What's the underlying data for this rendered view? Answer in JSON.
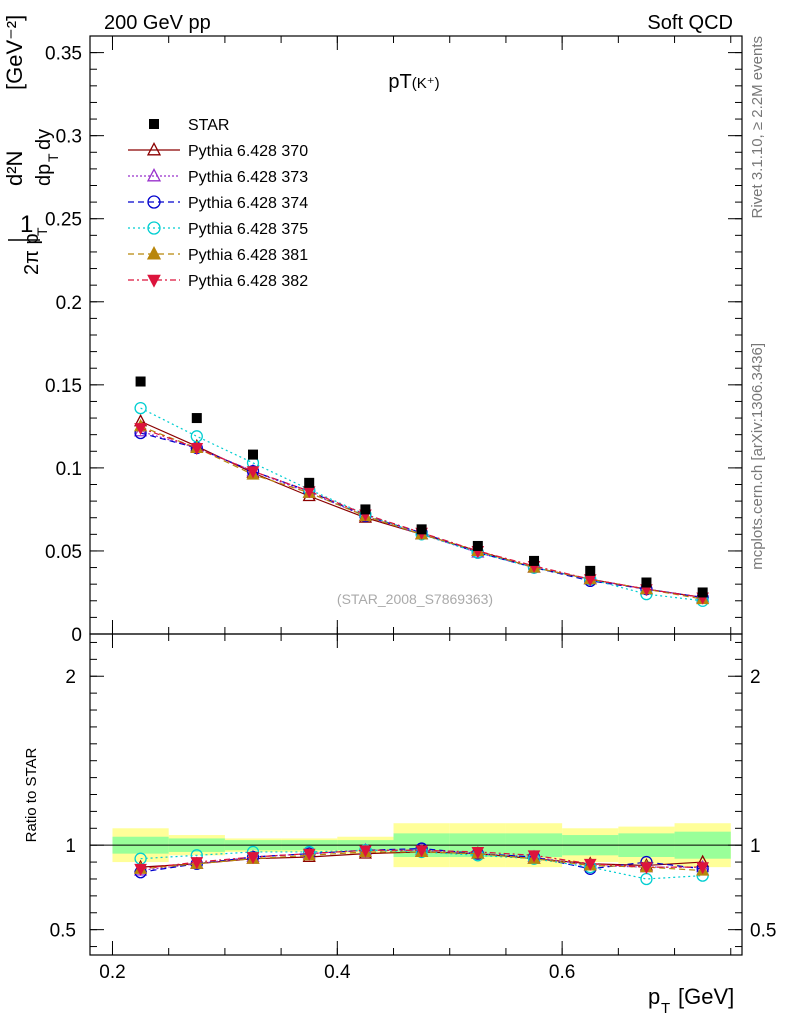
{
  "header": {
    "left": "200 GeV pp",
    "right": "Soft QCD"
  },
  "side": {
    "version": "Rivet 3.1.10, ≥ 2.2M events",
    "source": "mcplots.cern.ch [arXiv:1306.3436]"
  },
  "chart_data": {
    "type": "scatter",
    "title": "pT(K+)",
    "watermark": "(STAR_2008_S7869363)",
    "xlabel": "p_T [GeV]",
    "ylabel": "1/(2π p_T) d²N/(dp_T dy) [GeV⁻²]",
    "ratio_ylabel": "Ratio to STAR",
    "xlim": [
      0.18,
      0.76
    ],
    "ylim": [
      0,
      0.36
    ],
    "ratio_ylim": [
      0.35,
      2.25
    ],
    "x_ticks": [
      0.2,
      0.4,
      0.6
    ],
    "x_tick_labels": [
      "0.2",
      "0.4",
      "0.6"
    ],
    "y_ticks": [
      0,
      0.05,
      0.1,
      0.15,
      0.2,
      0.25,
      0.3,
      0.35
    ],
    "y_tick_labels": [
      "0",
      "0.05",
      "0.1",
      "0.15",
      "0.2",
      "0.25",
      "0.3",
      "0.35"
    ],
    "ratio_ticks": [
      0.5,
      1,
      2
    ],
    "ratio_tick_labels": [
      "0.5",
      "1",
      "2"
    ],
    "legend_position": "top-left",
    "x": [
      0.225,
      0.275,
      0.325,
      0.375,
      0.425,
      0.475,
      0.525,
      0.575,
      0.625,
      0.675,
      0.725
    ],
    "bin_edges": [
      0.2,
      0.25,
      0.3,
      0.35,
      0.4,
      0.45,
      0.5,
      0.55,
      0.6,
      0.65,
      0.7,
      0.75
    ],
    "data": {
      "name": "STAR",
      "values": [
        0.152,
        0.13,
        0.108,
        0.091,
        0.075,
        0.063,
        0.053,
        0.044,
        0.038,
        0.031,
        0.025
      ],
      "ratio_band_inner": [
        0.05,
        0.04,
        0.03,
        0.03,
        0.03,
        0.07,
        0.07,
        0.07,
        0.06,
        0.07,
        0.08
      ],
      "ratio_band_outer": [
        0.1,
        0.06,
        0.04,
        0.04,
        0.05,
        0.13,
        0.13,
        0.13,
        0.1,
        0.11,
        0.13
      ]
    },
    "series": [
      {
        "name": "Pythia 6.428 370",
        "color": "#8b0000",
        "marker": "triangle-open",
        "dash": "",
        "values": [
          0.128,
          0.113,
          0.097,
          0.083,
          0.07,
          0.06,
          0.05,
          0.04,
          0.033,
          0.027,
          0.022
        ],
        "ratio": [
          0.87,
          0.89,
          0.92,
          0.93,
          0.95,
          0.96,
          0.95,
          0.92,
          0.89,
          0.88,
          0.9
        ]
      },
      {
        "name": "Pythia 6.428 373",
        "color": "#9932cc",
        "marker": "triangle-open",
        "dash": "2,2",
        "values": [
          0.122,
          0.112,
          0.098,
          0.085,
          0.071,
          0.06,
          0.049,
          0.04,
          0.033,
          0.027,
          0.022
        ],
        "ratio": [
          0.85,
          0.89,
          0.93,
          0.95,
          0.97,
          0.97,
          0.95,
          0.93,
          0.88,
          0.87,
          0.87
        ]
      },
      {
        "name": "Pythia 6.428 374",
        "color": "#0000cd",
        "marker": "circle-open",
        "dash": "6,4",
        "values": [
          0.121,
          0.112,
          0.098,
          0.086,
          0.071,
          0.061,
          0.049,
          0.04,
          0.032,
          0.027,
          0.022
        ],
        "ratio": [
          0.84,
          0.89,
          0.93,
          0.95,
          0.97,
          0.98,
          0.95,
          0.93,
          0.86,
          0.9,
          0.86
        ]
      },
      {
        "name": "Pythia 6.428 375",
        "color": "#00ced1",
        "marker": "circle-open",
        "dash": "2,3",
        "values": [
          0.136,
          0.119,
          0.103,
          0.087,
          0.072,
          0.06,
          0.049,
          0.04,
          0.033,
          0.024,
          0.02
        ],
        "ratio": [
          0.92,
          0.94,
          0.96,
          0.96,
          0.97,
          0.96,
          0.94,
          0.92,
          0.87,
          0.8,
          0.82
        ]
      },
      {
        "name": "Pythia 6.428 381",
        "color": "#b8860b",
        "marker": "triangle-filled",
        "dash": "6,4",
        "values": [
          0.125,
          0.112,
          0.096,
          0.085,
          0.071,
          0.06,
          0.05,
          0.04,
          0.033,
          0.027,
          0.021
        ],
        "ratio": [
          0.86,
          0.89,
          0.92,
          0.94,
          0.96,
          0.96,
          0.95,
          0.92,
          0.88,
          0.87,
          0.85
        ]
      },
      {
        "name": "Pythia 6.428 382",
        "color": "#dc143c",
        "marker": "triangle-down-filled",
        "dash": "6,3,2,3",
        "values": [
          0.124,
          0.112,
          0.098,
          0.086,
          0.072,
          0.061,
          0.05,
          0.041,
          0.033,
          0.027,
          0.022
        ],
        "ratio": [
          0.86,
          0.9,
          0.93,
          0.95,
          0.97,
          0.97,
          0.96,
          0.94,
          0.89,
          0.87,
          0.87
        ]
      }
    ]
  }
}
